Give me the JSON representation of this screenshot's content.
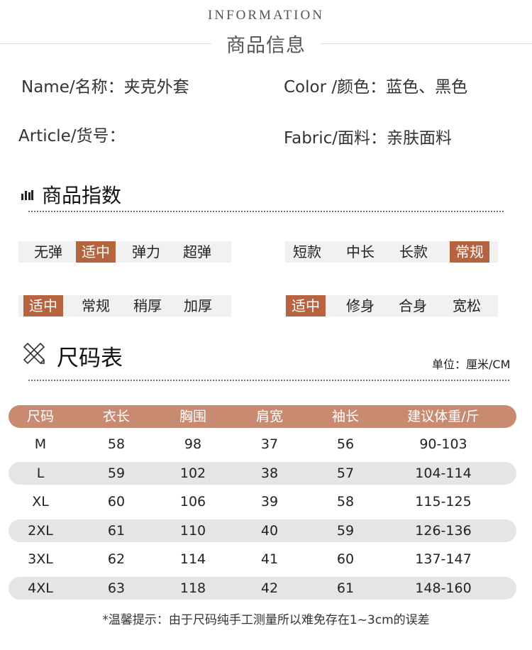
{
  "header": {
    "en": "INFORMATION",
    "cn": "商品信息"
  },
  "info": {
    "name": "Name/名称：夹克外套",
    "color": "Color /颜色：蓝色、黑色",
    "article": "Article/货号：",
    "fabric": "Fabric/面料：亲肤面料"
  },
  "index": {
    "title": "商品指数",
    "scales": [
      {
        "options": [
          "无弹",
          "适中",
          "弹力",
          "超弹"
        ],
        "selected": "适中"
      },
      {
        "options": [
          "短款",
          "中长",
          "长款",
          "常规"
        ],
        "selected": "常规"
      },
      {
        "options": [
          "适中",
          "常规",
          "稍厚",
          "加厚"
        ],
        "selected": "适中"
      },
      {
        "options": [
          "适中",
          "修身",
          "合身",
          "宽松"
        ],
        "selected": "适中"
      }
    ]
  },
  "size": {
    "title": "尺码表",
    "unit": "单位：厘米/CM",
    "headers": [
      "尺码",
      "衣长",
      "胸围",
      "肩宽",
      "袖长",
      "建议体重/斤"
    ],
    "rows": [
      [
        "M",
        "58",
        "98",
        "37",
        "56",
        "90-103"
      ],
      [
        "L",
        "59",
        "102",
        "38",
        "57",
        "104-114"
      ],
      [
        "XL",
        "60",
        "106",
        "39",
        "58",
        "115-125"
      ],
      [
        "2XL",
        "61",
        "110",
        "40",
        "59",
        "126-136"
      ],
      [
        "3XL",
        "62",
        "114",
        "41",
        "60",
        "137-147"
      ],
      [
        "4XL",
        "63",
        "118",
        "42",
        "61",
        "148-160"
      ]
    ],
    "note": "*温馨提示：由于尺码纯手工测量所以难免存在1~3cm的误差"
  },
  "colors": {
    "accent": "#b5643f",
    "header": "#c98a72",
    "stripe": "#e5e5e5"
  }
}
